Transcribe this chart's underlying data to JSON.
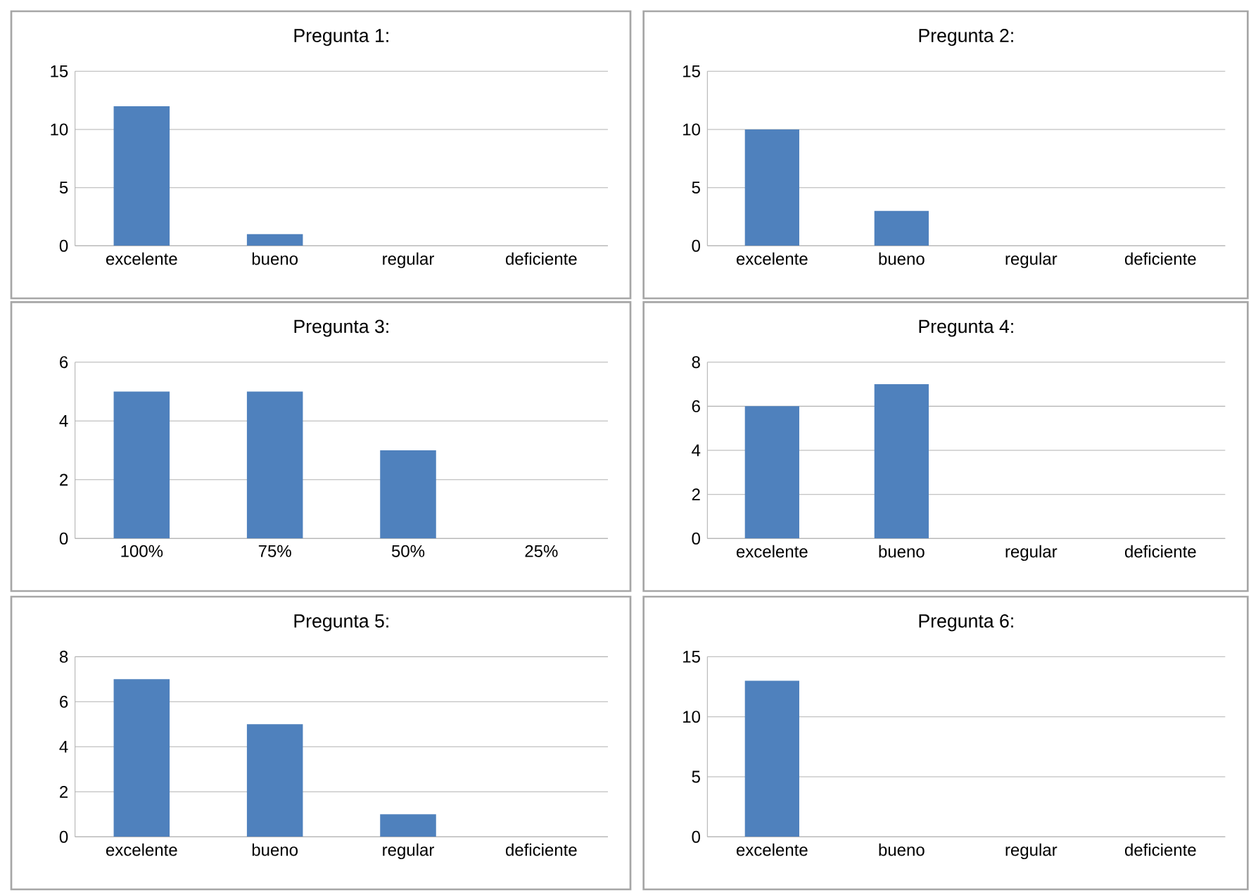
{
  "chart_data": [
    {
      "type": "bar",
      "title": "Pregunta 1:",
      "categories": [
        "excelente",
        "bueno",
        "regular",
        "deficiente"
      ],
      "values": [
        12,
        1,
        0,
        0
      ],
      "color": "#4f81bd",
      "ylim": [
        0,
        15
      ],
      "yticks": [
        0,
        5,
        10,
        15
      ],
      "grid": "y"
    },
    {
      "type": "bar",
      "title": "Pregunta 2:",
      "categories": [
        "excelente",
        "bueno",
        "regular",
        "deficiente"
      ],
      "values": [
        10,
        3,
        0,
        0
      ],
      "color": "#4f81bd",
      "ylim": [
        0,
        15
      ],
      "yticks": [
        0,
        5,
        10,
        15
      ],
      "grid": "y"
    },
    {
      "type": "bar",
      "title": "Pregunta 3:",
      "categories": [
        "100%",
        "75%",
        "50%",
        "25%"
      ],
      "values": [
        5,
        5,
        3,
        0
      ],
      "color": "#4f81bd",
      "ylim": [
        0,
        6
      ],
      "yticks": [
        0,
        2,
        4,
        6
      ],
      "grid": "y"
    },
    {
      "type": "bar",
      "title": "Pregunta 4:",
      "categories": [
        "excelente",
        "bueno",
        "regular",
        "deficiente"
      ],
      "values": [
        6,
        7,
        0,
        0
      ],
      "color": "#4f81bd",
      "ylim": [
        0,
        8
      ],
      "yticks": [
        0,
        2,
        4,
        6,
        8
      ],
      "grid": "y"
    },
    {
      "type": "bar",
      "title": "Pregunta 5:",
      "categories": [
        "excelente",
        "bueno",
        "regular",
        "deficiente"
      ],
      "values": [
        7,
        5,
        1,
        0
      ],
      "color": "#4f81bd",
      "ylim": [
        0,
        8
      ],
      "yticks": [
        0,
        2,
        4,
        6,
        8
      ],
      "grid": "y"
    },
    {
      "type": "bar",
      "title": "Pregunta 6:",
      "categories": [
        "excelente",
        "bueno",
        "regular",
        "deficiente"
      ],
      "values": [
        13,
        0,
        0,
        0
      ],
      "color": "#4f81bd",
      "ylim": [
        0,
        15
      ],
      "yticks": [
        0,
        5,
        10,
        15
      ],
      "grid": "y"
    }
  ]
}
